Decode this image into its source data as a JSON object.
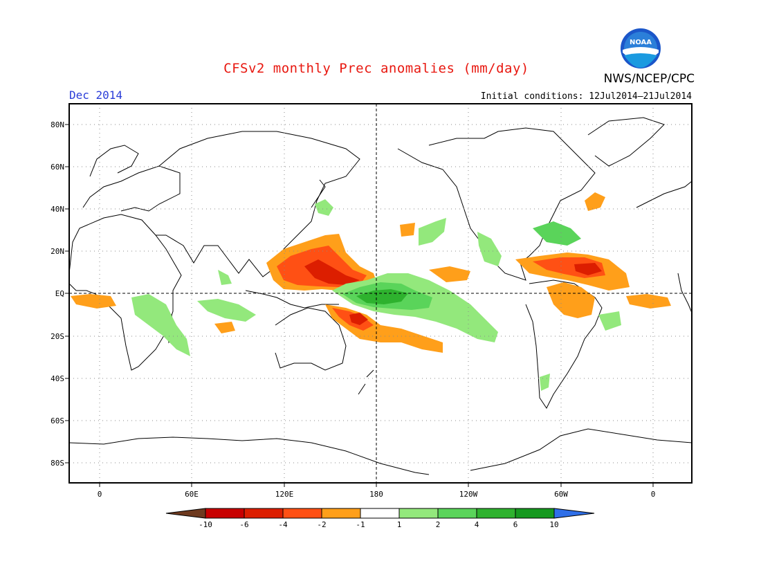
{
  "header": {
    "title": "CFSv2 monthly Prec anomalies (mm/day)",
    "agency": "NWS/NCEP/CPC",
    "month_label": "Dec 2014",
    "initial_conditions": "Initial conditions: 12Jul2014–21Jul2014",
    "logo_text": "NOAA"
  },
  "map": {
    "projection": "cylindrical equidistant",
    "lon_range": [
      -20,
      380
    ],
    "lat_range": [
      -90,
      90
    ],
    "center_line_lon": 180,
    "equator_dashed": true,
    "grid": "dotted",
    "lat_ticks": [
      "80N",
      "60N",
      "40N",
      "20N",
      "EQ",
      "20S",
      "40S",
      "60S",
      "80S"
    ],
    "lon_ticks": [
      "0",
      "60E",
      "120E",
      "180",
      "120W",
      "60W",
      "0"
    ]
  },
  "colorbar": {
    "labels": [
      "-10",
      "-6",
      "-4",
      "-2",
      "-1",
      "1",
      "2",
      "4",
      "6",
      "10"
    ],
    "colors": [
      "#6e3a1f",
      "#c80000",
      "#dc1e00",
      "#ff5014",
      "#ff9f1a",
      "#ffffff",
      "#93e87c",
      "#5ad45a",
      "#2eb22e",
      "#15991f",
      "#2f6fe8"
    ]
  },
  "anomaly_colors": {
    "dry_strong": "#dc1e00",
    "dry_moderate": "#ff5014",
    "dry_weak": "#ff9f1a",
    "wet_weak": "#93e87c",
    "wet_moderate": "#5ad45a",
    "wet_strong": "#2eb22e"
  }
}
